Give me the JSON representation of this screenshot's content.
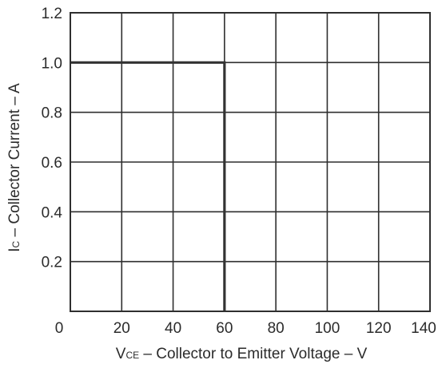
{
  "chart_data": {
    "type": "line",
    "xlabel": "VCE – Collector to Emitter Voltage – V",
    "ylabel": "IC – Collector Current – A",
    "xlabel_parts": {
      "symbol_main": "V",
      "symbol_sub": "CE",
      "text": " – Collector to Emitter Voltage – V"
    },
    "ylabel_parts": {
      "symbol_main": "I",
      "symbol_sub": "C",
      "text": " – Collector Current – A"
    },
    "xlim": [
      0,
      140
    ],
    "ylim": [
      0,
      1.2
    ],
    "x_ticks": [
      0,
      20,
      40,
      60,
      80,
      100,
      120,
      140
    ],
    "x_tick_labels": [
      "0",
      "20",
      "40",
      "60",
      "80",
      "100",
      "120",
      "140"
    ],
    "y_ticks": [
      0,
      0.2,
      0.4,
      0.6,
      0.8,
      1.0,
      1.2
    ],
    "y_tick_labels": [
      "",
      "0.2",
      "0.4",
      "0.6",
      "0.8",
      "1.0",
      "1.2"
    ],
    "grid": true,
    "series": [
      {
        "x": [
          0,
          60,
          60
        ],
        "y": [
          1.0,
          1.0,
          0
        ]
      }
    ]
  }
}
